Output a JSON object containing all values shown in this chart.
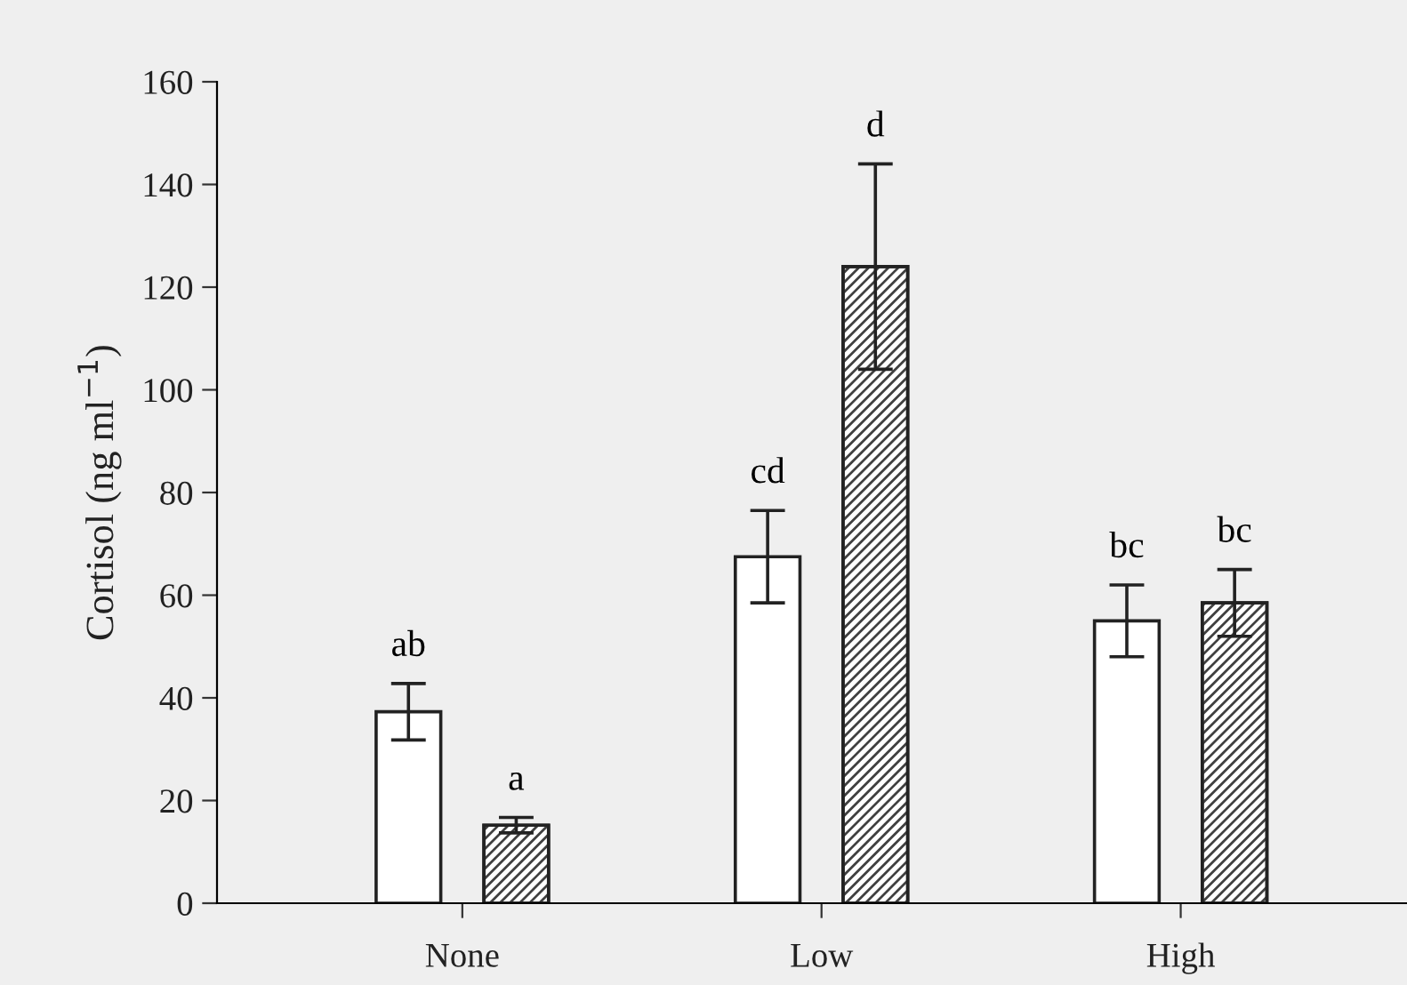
{
  "chart_data": {
    "type": "bar",
    "ylabel": "Cortisol (ng ml$^{−1}$)",
    "categories": [
      "None",
      "Low",
      "High"
    ],
    "series": [
      {
        "color": "#ffffff",
        "values": [
          37.3,
          67.5,
          55
        ],
        "errors": [
          5.5,
          9,
          7
        ]
      },
      {
        "color": "#404040",
        "values": [
          15.2,
          124,
          58.5
        ],
        "errors": [
          1.5,
          20,
          6.5
        ]
      }
    ],
    "ylim": [
      0,
      160
    ],
    "yticks": [
      0,
      20,
      40,
      60,
      80,
      100,
      120,
      140,
      160
    ],
    "grid": false,
    "legend": false,
    "annotations": [
      "ab",
      "a",
      "cd",
      "d",
      "bc",
      "bc"
    ]
  }
}
